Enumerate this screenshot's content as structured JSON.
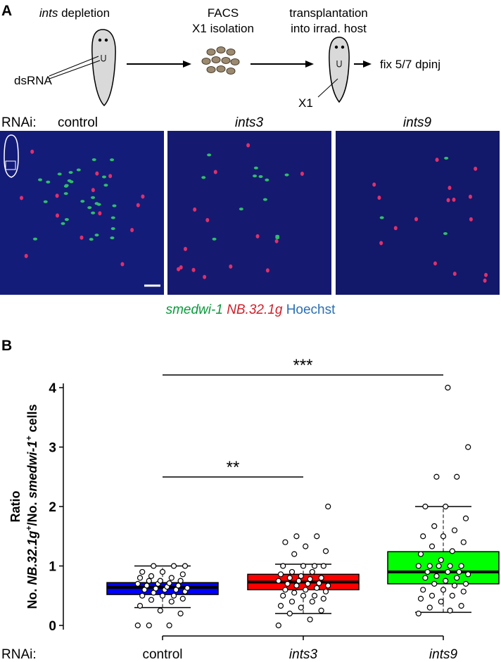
{
  "panel_a": {
    "label": "A",
    "step1": [
      "ints",
      " depletion"
    ],
    "step1_pointer": "dsRNA",
    "step2": [
      "FACS",
      "X1 isolation"
    ],
    "step3": [
      "transplantation",
      "into irrad. host"
    ],
    "step3_pointer": "X1",
    "step4": "fix 5/7 dpinj",
    "rnai_label": "RNAi:",
    "image_titles": [
      "control",
      "ints3",
      "ints9"
    ],
    "legend": [
      "smedwi-1",
      "NB.32.1g",
      "Hoechst"
    ]
  },
  "chart_data": {
    "type": "box",
    "panel_label": "B",
    "y_label": [
      "Ratio",
      "No. ",
      "NB.32.1g",
      "+",
      "/No. ",
      "smedwi-1",
      "+",
      " cells"
    ],
    "x_label": "RNAi:",
    "categories": [
      "control",
      "ints3",
      "ints9"
    ],
    "colors": [
      "#0000ff",
      "#ff0000",
      "#00ff00"
    ],
    "whisker_low": [
      0.3,
      0.2,
      0.22
    ],
    "q1": [
      0.52,
      0.6,
      0.7
    ],
    "median": [
      0.64,
      0.73,
      0.9
    ],
    "q3": [
      0.72,
      0.86,
      1.24
    ],
    "whisker_high": [
      1.0,
      1.03,
      2.0
    ],
    "points": [
      [
        0,
        0,
        0,
        0.2,
        0.25,
        0.33,
        0.4,
        0.43,
        0.45,
        0.5,
        0.5,
        0.5,
        0.55,
        0.57,
        0.6,
        0.6,
        0.6,
        0.62,
        0.63,
        0.65,
        0.67,
        0.67,
        0.7,
        0.7,
        0.71,
        0.75,
        0.75,
        0.75,
        0.8,
        0.8,
        0.83,
        0.86,
        0.9,
        0.9,
        1,
        1,
        1
      ],
      [
        0,
        0.1,
        0.2,
        0.25,
        0.3,
        0.33,
        0.4,
        0.4,
        0.45,
        0.5,
        0.5,
        0.5,
        0.55,
        0.57,
        0.6,
        0.6,
        0.63,
        0.67,
        0.67,
        0.7,
        0.7,
        0.71,
        0.75,
        0.75,
        0.78,
        0.8,
        0.8,
        0.83,
        0.86,
        0.9,
        0.9,
        1,
        1,
        1,
        1,
        1.2,
        1.25,
        1.33,
        1.4,
        1.5,
        1.5,
        2
      ],
      [
        0.2,
        0.25,
        0.3,
        0.33,
        0.4,
        0.45,
        0.5,
        0.5,
        0.57,
        0.6,
        0.6,
        0.67,
        0.7,
        0.7,
        0.75,
        0.8,
        0.8,
        0.83,
        0.86,
        0.9,
        0.9,
        0.9,
        1,
        1,
        1,
        1,
        1,
        1.1,
        1.2,
        1.25,
        1.33,
        1.4,
        1.5,
        1.5,
        1.6,
        1.67,
        1.8,
        2,
        2,
        2.5,
        2.5,
        3,
        4
      ]
    ],
    "significance": [
      "**",
      "***"
    ],
    "ylim": [
      0,
      4
    ],
    "yticks": [
      0,
      1,
      2,
      3,
      4
    ]
  }
}
